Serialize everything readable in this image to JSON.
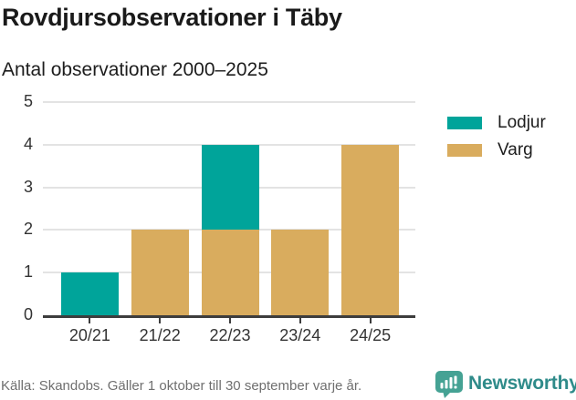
{
  "header": {
    "title": "Rovdjursobservationer i Täby",
    "subtitle": "Antal observationer 2000–2025"
  },
  "chart_data": {
    "type": "bar",
    "stacked": true,
    "categories": [
      "20/21",
      "21/22",
      "22/23",
      "23/24",
      "24/25"
    ],
    "series": [
      {
        "name": "Lodjur",
        "color": "#00a49a",
        "values": [
          1,
          0,
          2,
          0,
          0
        ]
      },
      {
        "name": "Varg",
        "color": "#d9ac5e",
        "values": [
          0,
          2,
          2,
          2,
          4
        ]
      }
    ],
    "title": "Rovdjursobservationer i Täby",
    "subtitle": "Antal observationer 2000–2025",
    "xlabel": "",
    "ylabel": "",
    "ylim": [
      0,
      5
    ],
    "yticks": [
      0,
      1,
      2,
      3,
      4,
      5
    ],
    "grid": true,
    "legend_position": "right"
  },
  "legend": {
    "items": [
      {
        "label": "Lodjur",
        "color": "#00a49a"
      },
      {
        "label": "Varg",
        "color": "#d9ac5e"
      }
    ]
  },
  "footer": {
    "source": "Källa: Skandobs. Gäller 1 oktober till 30 september varje år.",
    "brand": "Newsworthy"
  },
  "colors": {
    "lodjur": "#00a49a",
    "varg": "#d9ac5e",
    "grid": "#e3e3e3",
    "axis": "#3d3d3d",
    "tick_label": "#333333",
    "title_text": "#1a1a1a",
    "source_text": "#6f6f6f",
    "logo_icon": "#45a294",
    "logo_text": "#2f8b8a"
  }
}
